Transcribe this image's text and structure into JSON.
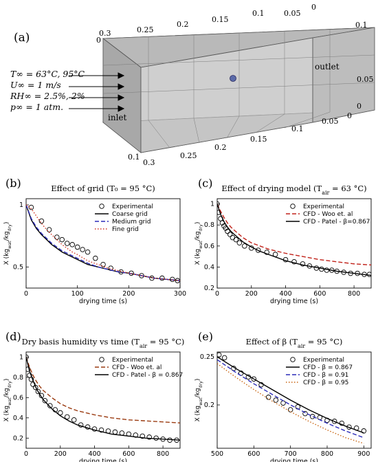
{
  "panel_a": {
    "label": "(a)",
    "conditions": [
      "T∞ = 63°C, 95°C",
      "U∞ = 1 m/s",
      "RH∞ = 2.5%, 2%",
      "p∞ = 1 atm."
    ],
    "inlet_label": "inlet",
    "outlet_label": "outlet",
    "top_ticks": [
      "0.3",
      "0.25",
      "0.2",
      "0.15",
      "0.1",
      "0.05",
      "0"
    ],
    "right_ticks": [
      "0.1",
      "0.05",
      "0"
    ],
    "left_tick": "0",
    "bottom_front_ticks": [
      "0.1",
      "0.3",
      "0.25",
      "0.2",
      "0.15",
      "0.1",
      "0.05",
      "0"
    ],
    "colors": {
      "box_face": "#c8c8c8",
      "box_edge": "#555555",
      "probe": "#5a6aa8"
    }
  },
  "chart_data": [
    {
      "panel": "(b)",
      "type": "line",
      "title": "Effect of grid (T₀ = 95 °C)",
      "xlabel": "drying time (s)",
      "ylabel": "X (kg_wat/kg_dry)",
      "xlim": [
        0,
        300
      ],
      "ylim": [
        0.33,
        1.05
      ],
      "xticks": [
        "0",
        "100",
        "200",
        "300"
      ],
      "yticks": [
        "0.5",
        "1"
      ],
      "legend_position": "top-right",
      "series": [
        {
          "name": "Experimental",
          "kind": "markers",
          "color": "#000000",
          "x": [
            10,
            30,
            45,
            60,
            70,
            80,
            90,
            100,
            110,
            120,
            135,
            150,
            165,
            185,
            205,
            225,
            245,
            265,
            285,
            295
          ],
          "y": [
            0.98,
            0.87,
            0.8,
            0.74,
            0.72,
            0.69,
            0.68,
            0.66,
            0.64,
            0.62,
            0.57,
            0.52,
            0.49,
            0.46,
            0.45,
            0.43,
            0.41,
            0.41,
            0.4,
            0.39
          ]
        },
        {
          "name": "Coarse grid",
          "kind": "solid",
          "color": "#000000",
          "x": [
            0,
            10,
            20,
            30,
            40,
            50,
            60,
            70,
            80,
            90,
            100,
            120,
            140,
            160,
            180,
            200,
            225,
            250,
            275,
            300
          ],
          "y": [
            1.0,
            0.88,
            0.81,
            0.76,
            0.72,
            0.68,
            0.65,
            0.62,
            0.6,
            0.58,
            0.56,
            0.52,
            0.5,
            0.48,
            0.46,
            0.45,
            0.43,
            0.41,
            0.4,
            0.39
          ]
        },
        {
          "name": "Medium grid",
          "kind": "dashed",
          "color": "#2a2ab8",
          "x": [
            0,
            10,
            20,
            30,
            40,
            50,
            60,
            70,
            80,
            90,
            100,
            120,
            140,
            160,
            180,
            200,
            225,
            250,
            275,
            300
          ],
          "y": [
            1.0,
            0.89,
            0.82,
            0.77,
            0.73,
            0.69,
            0.66,
            0.63,
            0.61,
            0.59,
            0.57,
            0.53,
            0.5,
            0.48,
            0.46,
            0.45,
            0.43,
            0.41,
            0.4,
            0.39
          ]
        },
        {
          "name": "Fine grid",
          "kind": "dotted",
          "color": "#d03020",
          "x": [
            0,
            10,
            20,
            30,
            40,
            50,
            60,
            70,
            80,
            90,
            100,
            120,
            140,
            160,
            180,
            200,
            225,
            250,
            275,
            300
          ],
          "y": [
            1.0,
            0.97,
            0.91,
            0.85,
            0.8,
            0.76,
            0.72,
            0.68,
            0.65,
            0.62,
            0.6,
            0.55,
            0.52,
            0.49,
            0.47,
            0.45,
            0.43,
            0.41,
            0.4,
            0.39
          ]
        }
      ]
    },
    {
      "panel": "(c)",
      "type": "line",
      "title": "Effect of drying model (T_air = 63 °C)",
      "xlabel": "drying time (s)",
      "ylabel": "X (kg_wat/kg_dry)",
      "xlim": [
        0,
        900
      ],
      "ylim": [
        0.2,
        1.05
      ],
      "xticks": [
        "0",
        "200",
        "400",
        "600",
        "800"
      ],
      "yticks": [
        "0.2",
        "0.4",
        "0.6",
        "0.8",
        "1"
      ],
      "legend_position": "top-right",
      "series": [
        {
          "name": "Experimental",
          "kind": "markers",
          "color": "#000000",
          "x": [
            0,
            10,
            20,
            30,
            40,
            50,
            60,
            75,
            90,
            110,
            130,
            160,
            200,
            240,
            290,
            340,
            400,
            450,
            500,
            540,
            580,
            610,
            640,
            670,
            700,
            740,
            780,
            820,
            860,
            890
          ],
          "y": [
            1.0,
            0.92,
            0.86,
            0.82,
            0.79,
            0.77,
            0.74,
            0.71,
            0.68,
            0.66,
            0.63,
            0.6,
            0.58,
            0.56,
            0.54,
            0.52,
            0.47,
            0.45,
            0.43,
            0.41,
            0.39,
            0.38,
            0.37,
            0.37,
            0.36,
            0.35,
            0.34,
            0.34,
            0.33,
            0.33
          ]
        },
        {
          "name": "CFD - Woo et. al",
          "kind": "dashed",
          "color": "#c02018",
          "x": [
            0,
            20,
            40,
            60,
            80,
            100,
            150,
            200,
            250,
            300,
            400,
            500,
            600,
            700,
            800,
            900
          ],
          "y": [
            1.0,
            0.93,
            0.87,
            0.82,
            0.78,
            0.75,
            0.68,
            0.63,
            0.6,
            0.57,
            0.53,
            0.5,
            0.47,
            0.45,
            0.43,
            0.42
          ]
        },
        {
          "name": "CFD - Patel - β=0.867",
          "kind": "solid",
          "color": "#000000",
          "x": [
            0,
            20,
            40,
            60,
            80,
            100,
            150,
            200,
            250,
            300,
            400,
            500,
            600,
            700,
            800,
            900
          ],
          "y": [
            1.0,
            0.9,
            0.83,
            0.78,
            0.74,
            0.71,
            0.64,
            0.59,
            0.55,
            0.52,
            0.46,
            0.42,
            0.39,
            0.36,
            0.34,
            0.32
          ]
        }
      ]
    },
    {
      "panel": "(d)",
      "type": "line",
      "title": "Dry basis humidity vs time (T_air = 95 °C)",
      "xlabel": "drying time (s)",
      "ylabel": "X (kg_wat/kg_dry)",
      "xlim": [
        0,
        900
      ],
      "ylim": [
        0.1,
        1.05
      ],
      "xticks": [
        "0",
        "200",
        "400",
        "600",
        "800"
      ],
      "yticks": [
        "0.2",
        "0.4",
        "0.6",
        "0.8",
        "1"
      ],
      "legend_position": "top-right",
      "series": [
        {
          "name": "Experimental",
          "kind": "markers",
          "color": "#000000",
          "x": [
            0,
            10,
            20,
            30,
            40,
            55,
            70,
            90,
            110,
            140,
            170,
            200,
            240,
            280,
            320,
            360,
            400,
            440,
            480,
            520,
            560,
            600,
            640,
            680,
            720,
            760,
            800,
            840,
            880
          ],
          "y": [
            1.0,
            0.88,
            0.82,
            0.78,
            0.73,
            0.7,
            0.66,
            0.62,
            0.57,
            0.52,
            0.48,
            0.45,
            0.41,
            0.38,
            0.33,
            0.31,
            0.29,
            0.28,
            0.27,
            0.26,
            0.25,
            0.24,
            0.23,
            0.22,
            0.21,
            0.2,
            0.19,
            0.18,
            0.18
          ]
        },
        {
          "name": "CFD - Woo et. al",
          "kind": "dashed",
          "color": "#9a3a10",
          "x": [
            0,
            20,
            40,
            60,
            80,
            100,
            150,
            200,
            250,
            300,
            400,
            500,
            600,
            700,
            800,
            900
          ],
          "y": [
            1.0,
            0.9,
            0.82,
            0.76,
            0.71,
            0.67,
            0.6,
            0.54,
            0.5,
            0.47,
            0.43,
            0.4,
            0.38,
            0.37,
            0.36,
            0.35
          ]
        },
        {
          "name": "CFD - Patel - β = 0.867",
          "kind": "solid",
          "color": "#000000",
          "x": [
            0,
            20,
            40,
            60,
            80,
            100,
            150,
            200,
            250,
            300,
            400,
            500,
            600,
            700,
            800,
            900
          ],
          "y": [
            1.0,
            0.86,
            0.77,
            0.69,
            0.63,
            0.58,
            0.49,
            0.42,
            0.37,
            0.33,
            0.28,
            0.24,
            0.22,
            0.2,
            0.19,
            0.18
          ]
        }
      ]
    },
    {
      "panel": "(e)",
      "type": "line",
      "title": "Effect of β (T_air = 95 °C)",
      "xlabel": "drying time (s)",
      "ylabel": "X (kg_wat/kg_dry)",
      "xlim": [
        500,
        920
      ],
      "ylim": [
        0.155,
        0.255
      ],
      "xticks": [
        "500",
        "600",
        "700",
        "800",
        "900"
      ],
      "yticks": [
        "0.2",
        "0.25"
      ],
      "legend_position": "top-right",
      "series": [
        {
          "name": "Experimental",
          "kind": "markers",
          "color": "#000000",
          "x": [
            505,
            520,
            545,
            565,
            585,
            600,
            620,
            640,
            660,
            680,
            700,
            720,
            740,
            760,
            780,
            800,
            820,
            840,
            860,
            880,
            900
          ],
          "y": [
            0.252,
            0.249,
            0.238,
            0.233,
            0.229,
            0.227,
            0.221,
            0.208,
            0.205,
            0.202,
            0.195,
            0.198,
            0.191,
            0.188,
            0.187,
            0.184,
            0.183,
            0.181,
            0.177,
            0.176,
            0.173
          ]
        },
        {
          "name": "CFD - β = 0.867",
          "kind": "solid",
          "color": "#000000",
          "x": [
            500,
            550,
            600,
            650,
            700,
            750,
            800,
            850,
            900
          ],
          "y": [
            0.25,
            0.238,
            0.227,
            0.216,
            0.205,
            0.195,
            0.186,
            0.178,
            0.171
          ]
        },
        {
          "name": "CFD - β = 0.91",
          "kind": "dashed",
          "color": "#2a2ab8",
          "x": [
            500,
            550,
            600,
            650,
            700,
            750,
            800,
            850,
            900
          ],
          "y": [
            0.247,
            0.234,
            0.222,
            0.211,
            0.2,
            0.19,
            0.181,
            0.173,
            0.166
          ]
        },
        {
          "name": "CFD - β = 0.95",
          "kind": "dotted",
          "color": "#c86410",
          "x": [
            500,
            550,
            600,
            650,
            700,
            750,
            800,
            850,
            900
          ],
          "y": [
            0.243,
            0.229,
            0.216,
            0.204,
            0.193,
            0.183,
            0.174,
            0.166,
            0.16
          ]
        }
      ]
    }
  ]
}
